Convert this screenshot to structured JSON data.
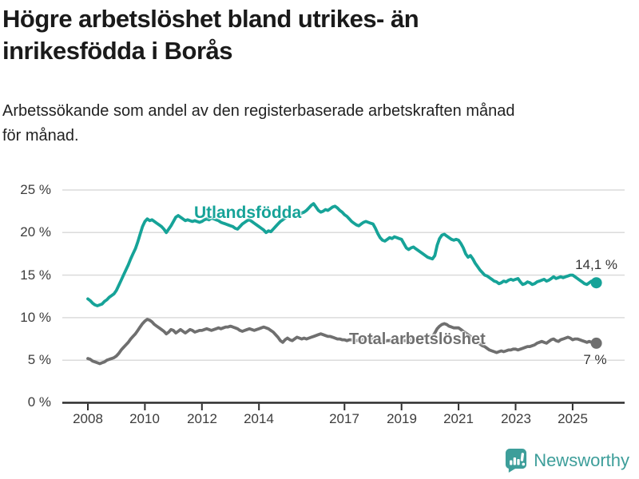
{
  "header": {
    "title_line1": "Högre arbetslöshet bland utrikes- än",
    "title_line2": "inrikesfödda i Borås",
    "subtitle_line1": "Arbetssökande som andel av den registerbaserade arbetskraften månad",
    "subtitle_line2": "för månad."
  },
  "branding": {
    "name": "Newsworthy",
    "color": "#3d9e9a"
  },
  "colors": {
    "foreign_born_line": "#16a398",
    "total_line": "#6f6f6f",
    "grid": "#dbdbdb",
    "axis": "#2d2d2d",
    "text": "#3c3c3c",
    "title": "#1a1a1a"
  },
  "chart_data": {
    "type": "line",
    "title": "Högre arbetslöshet bland utrikes- än inrikesfödda i Borås",
    "subtitle": "Arbetssökande som andel av den registerbaserade arbetskraften månad för månad.",
    "x_unit": "month",
    "x_start": "2008-01",
    "x_end": "2025-11",
    "ylim": [
      0,
      25
    ],
    "grid": "horizontal",
    "legend_position": "inline-labels",
    "x_tick_labels": [
      "2008",
      "2010",
      "2012",
      "2014",
      "2017",
      "2019",
      "2021",
      "2023",
      "2025"
    ],
    "y_tick_labels": [
      "0 %",
      "5 %",
      "10 %",
      "15 %",
      "20 %",
      "25 %"
    ],
    "series": [
      {
        "name": "Utlandsfödda",
        "color": "#16a398",
        "end_label": "14,1 %",
        "end_value": 14.1,
        "values": [
          12.2,
          12.0,
          11.7,
          11.5,
          11.4,
          11.5,
          11.6,
          11.9,
          12.1,
          12.4,
          12.6,
          12.8,
          13.2,
          13.8,
          14.4,
          15.0,
          15.6,
          16.2,
          16.9,
          17.5,
          18.1,
          18.9,
          19.8,
          20.7,
          21.3,
          21.6,
          21.4,
          21.5,
          21.3,
          21.1,
          20.9,
          20.7,
          20.4,
          20.0,
          20.4,
          20.8,
          21.3,
          21.8,
          22.0,
          21.8,
          21.6,
          21.4,
          21.5,
          21.4,
          21.3,
          21.4,
          21.3,
          21.2,
          21.3,
          21.5,
          21.6,
          21.5,
          21.7,
          21.6,
          21.5,
          21.4,
          21.2,
          21.1,
          21.0,
          20.9,
          20.8,
          20.7,
          20.5,
          20.4,
          20.7,
          21.0,
          21.2,
          21.4,
          21.5,
          21.3,
          21.1,
          20.9,
          20.7,
          20.5,
          20.3,
          20.0,
          20.2,
          20.1,
          20.4,
          20.7,
          21.0,
          21.3,
          21.5,
          21.7,
          21.9,
          22.0,
          22.1,
          22.0,
          22.2,
          22.1,
          22.3,
          22.4,
          22.6,
          22.9,
          23.2,
          23.4,
          23.0,
          22.6,
          22.4,
          22.5,
          22.7,
          22.6,
          22.8,
          23.0,
          23.1,
          22.9,
          22.6,
          22.4,
          22.1,
          21.9,
          21.6,
          21.3,
          21.1,
          20.9,
          20.8,
          21.0,
          21.2,
          21.3,
          21.2,
          21.1,
          21.0,
          20.5,
          19.9,
          19.4,
          19.1,
          19.0,
          19.2,
          19.4,
          19.3,
          19.5,
          19.4,
          19.3,
          19.2,
          18.7,
          18.2,
          18.0,
          18.2,
          18.3,
          18.1,
          17.9,
          17.7,
          17.5,
          17.3,
          17.1,
          17.0,
          16.9,
          17.3,
          18.5,
          19.3,
          19.7,
          19.8,
          19.6,
          19.4,
          19.2,
          19.1,
          19.2,
          19.1,
          18.7,
          18.2,
          17.5,
          17.1,
          17.3,
          16.9,
          16.4,
          16.0,
          15.6,
          15.3,
          15.0,
          14.9,
          14.7,
          14.5,
          14.3,
          14.2,
          14.0,
          14.1,
          14.3,
          14.2,
          14.4,
          14.5,
          14.4,
          14.5,
          14.6,
          14.2,
          13.9,
          14.0,
          14.2,
          14.1,
          13.9,
          14.0,
          14.2,
          14.3,
          14.4,
          14.5,
          14.3,
          14.4,
          14.6,
          14.8,
          14.6,
          14.7,
          14.8,
          14.7,
          14.8,
          14.9,
          15.0,
          15.0,
          14.8,
          14.6,
          14.4,
          14.2,
          14.0,
          13.9,
          14.1,
          14.3,
          14.2,
          14.1
        ]
      },
      {
        "name": "Total arbetslöshet",
        "color": "#6f6f6f",
        "end_label": "7 %",
        "end_value": 7.0,
        "values": [
          5.2,
          5.1,
          4.9,
          4.8,
          4.7,
          4.6,
          4.7,
          4.8,
          5.0,
          5.1,
          5.2,
          5.3,
          5.5,
          5.8,
          6.2,
          6.5,
          6.8,
          7.1,
          7.5,
          7.8,
          8.1,
          8.5,
          8.9,
          9.3,
          9.6,
          9.8,
          9.7,
          9.5,
          9.2,
          9.0,
          8.8,
          8.6,
          8.4,
          8.1,
          8.3,
          8.6,
          8.5,
          8.2,
          8.4,
          8.6,
          8.4,
          8.2,
          8.4,
          8.6,
          8.5,
          8.3,
          8.4,
          8.5,
          8.5,
          8.6,
          8.7,
          8.6,
          8.5,
          8.6,
          8.7,
          8.8,
          8.7,
          8.8,
          8.9,
          8.9,
          9.0,
          8.9,
          8.8,
          8.7,
          8.5,
          8.4,
          8.5,
          8.6,
          8.7,
          8.6,
          8.5,
          8.6,
          8.7,
          8.8,
          8.9,
          8.8,
          8.7,
          8.5,
          8.3,
          8.0,
          7.7,
          7.3,
          7.1,
          7.4,
          7.6,
          7.4,
          7.3,
          7.5,
          7.7,
          7.6,
          7.5,
          7.6,
          7.5,
          7.6,
          7.7,
          7.8,
          7.9,
          8.0,
          8.1,
          8.0,
          7.9,
          7.8,
          7.8,
          7.7,
          7.6,
          7.5,
          7.5,
          7.4,
          7.4,
          7.3,
          7.4,
          7.4,
          7.3,
          7.3,
          7.4,
          7.4,
          7.5,
          7.4,
          7.4,
          7.5,
          7.5,
          7.4,
          7.3,
          7.3,
          7.2,
          7.2,
          7.3,
          7.3,
          7.4,
          7.4,
          7.3,
          7.4,
          7.4,
          7.3,
          7.3,
          7.4,
          7.4,
          7.5,
          7.5,
          7.6,
          7.6,
          7.7,
          7.7,
          7.8,
          7.8,
          7.8,
          8.2,
          8.7,
          9.0,
          9.2,
          9.3,
          9.2,
          9.0,
          8.9,
          8.8,
          8.8,
          8.8,
          8.6,
          8.4,
          8.2,
          8.0,
          7.8,
          7.6,
          7.3,
          7.1,
          6.9,
          6.7,
          6.6,
          6.4,
          6.2,
          6.1,
          6.0,
          5.9,
          6.0,
          6.1,
          6.0,
          6.1,
          6.2,
          6.2,
          6.3,
          6.3,
          6.2,
          6.3,
          6.4,
          6.5,
          6.6,
          6.6,
          6.7,
          6.8,
          7.0,
          7.1,
          7.2,
          7.1,
          7.0,
          7.2,
          7.4,
          7.5,
          7.3,
          7.2,
          7.4,
          7.5,
          7.6,
          7.7,
          7.6,
          7.4,
          7.5,
          7.5,
          7.4,
          7.3,
          7.2,
          7.1,
          7.2,
          7.1,
          7.0,
          7.0
        ]
      }
    ]
  }
}
